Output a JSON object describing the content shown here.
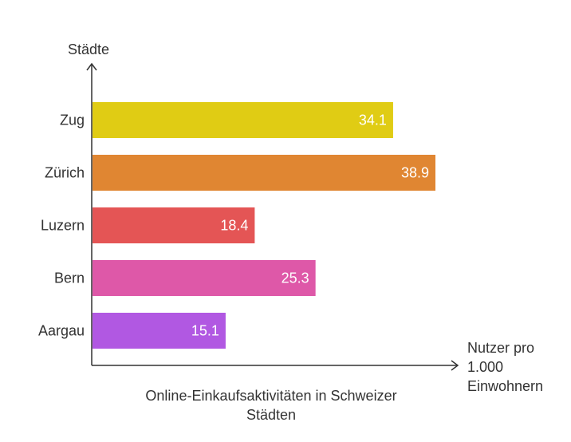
{
  "chart_data": {
    "type": "bar",
    "orientation": "horizontal",
    "title": "Online-Einkaufsaktivitäten in Schweizer Städten",
    "ylabel": "Städte",
    "xlabel": "Nutzer pro 1.000 Einwohnern",
    "categories": [
      "Zug",
      "Zürich",
      "Luzern",
      "Bern",
      "Aargau"
    ],
    "values": [
      34.1,
      38.9,
      18.4,
      25.3,
      15.1
    ],
    "value_labels": [
      "34.1",
      "38.9",
      "18.4",
      "25.3",
      "15.1"
    ],
    "colors": [
      "#e0cc14",
      "#e08632",
      "#e45555",
      "#de58a8",
      "#b158e2"
    ],
    "xlim": [
      0,
      42
    ],
    "grid": false,
    "legend": "none"
  }
}
